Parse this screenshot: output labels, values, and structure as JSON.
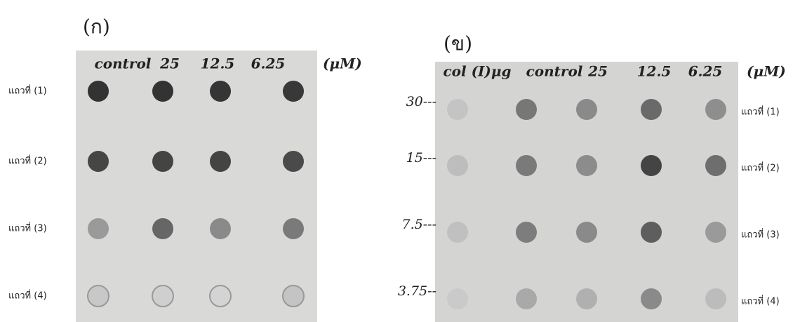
{
  "panels": [
    {
      "label": "(ก)",
      "columns": [
        "control",
        "25",
        "12.5",
        "6.25"
      ],
      "unit": "(μM)",
      "row_labels": [
        "แถวที่ (1)",
        "แถวที่ (2)",
        "แถวที่ (3)",
        "แถวที่ (4)"
      ]
    },
    {
      "label": "(ข)",
      "columns": [
        "col (I)μg",
        "control",
        "25",
        "12.5",
        "6.25"
      ],
      "unit": "(μM)",
      "standards": [
        "30---",
        "15---",
        "7.5---",
        "3.75--"
      ],
      "row_labels": [
        "แถวที่ (1)",
        "แถวที่ (2)",
        "แถวที่ (3)",
        "แถวที่ (4)"
      ]
    }
  ]
}
